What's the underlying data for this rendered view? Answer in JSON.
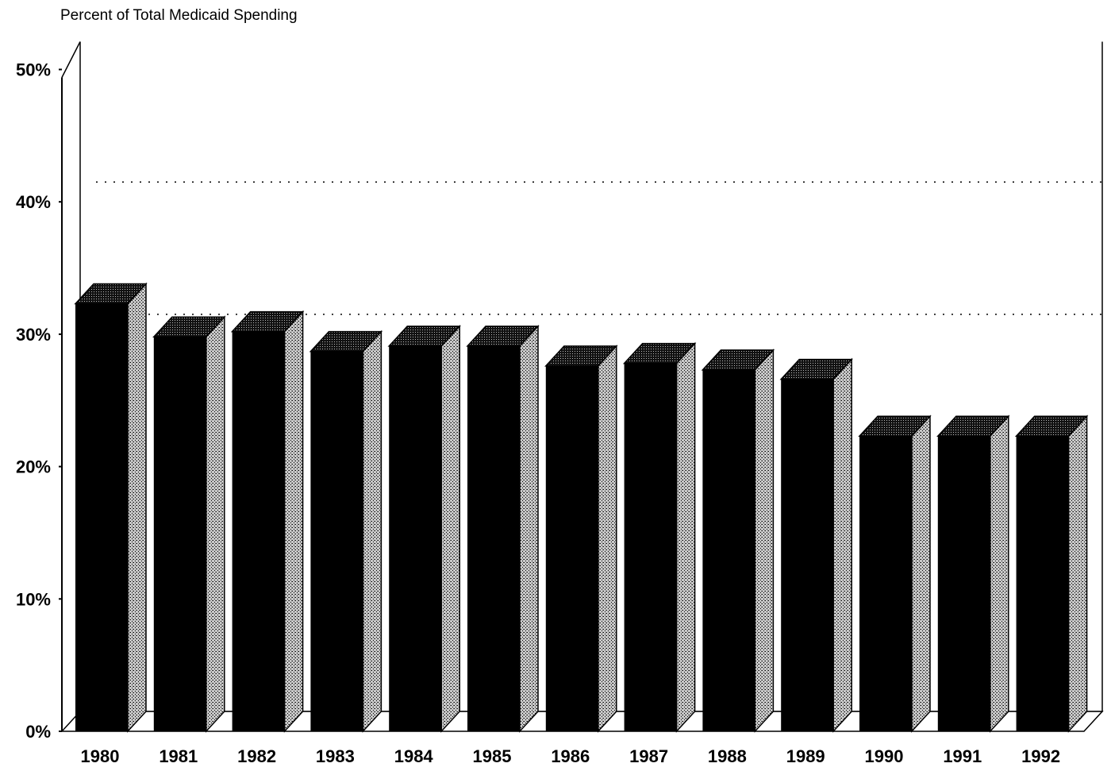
{
  "chart_data": {
    "type": "bar",
    "title": "Percent of Total Medicaid Spending",
    "xlabel": "",
    "ylabel": "",
    "categories": [
      "1980",
      "1981",
      "1982",
      "1983",
      "1984",
      "1985",
      "1986",
      "1987",
      "1988",
      "1989",
      "1990",
      "1991",
      "1992"
    ],
    "values": [
      32.3,
      29.8,
      30.2,
      28.7,
      29.1,
      29.1,
      27.6,
      27.8,
      27.3,
      26.6,
      22.3,
      22.3,
      22.3
    ],
    "ylim": [
      0,
      50
    ],
    "yticks": [
      "0%",
      "10%",
      "20%",
      "30%",
      "40%",
      "50%"
    ],
    "grid": "dotted lines at 30% and 40% on back wall",
    "style": "3D bars, black front face, gray stippled side",
    "colors": {
      "front": "#000000",
      "side": "#9a9a9a",
      "top": "#3a3a3a"
    }
  }
}
